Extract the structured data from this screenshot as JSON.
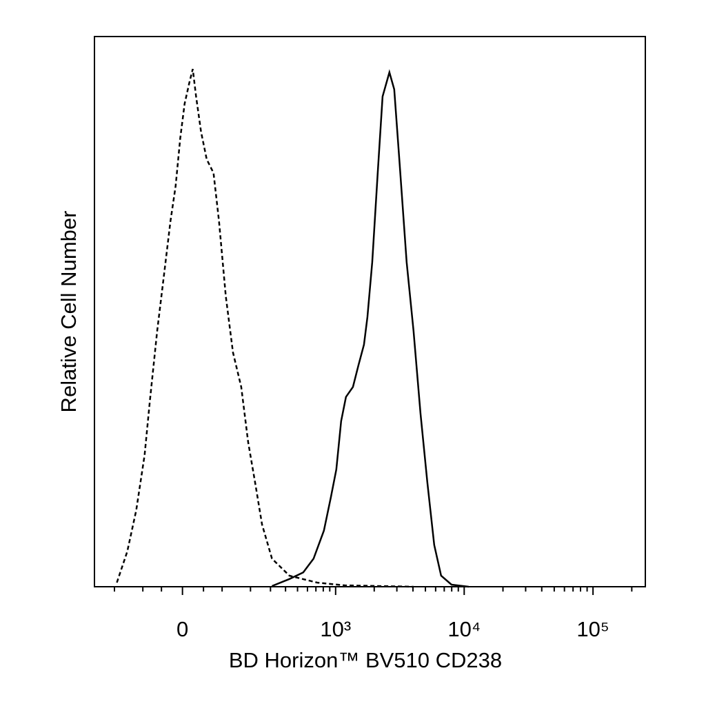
{
  "chart_data": {
    "type": "line",
    "x_label": "BD Horizon™ BV510 CD238",
    "y_label": "Relative Cell Number",
    "xscale": "arcsinh",
    "xlim": [
      -300,
      254800
    ],
    "ylim": [
      0,
      100
    ],
    "xticks": [
      {
        "value": 0,
        "label": "0"
      },
      {
        "value": 1000,
        "label": "10³"
      },
      {
        "value": 10000,
        "label": "10⁴"
      },
      {
        "value": 100000,
        "label": "10⁵"
      }
    ],
    "xminor_ticks": [
      -200,
      -100,
      -50,
      50,
      100,
      200,
      300,
      400,
      500,
      600,
      700,
      800,
      900,
      2000,
      3000,
      4000,
      5000,
      6000,
      7000,
      8000,
      9000,
      20000,
      30000,
      40000,
      50000,
      60000,
      70000,
      80000,
      90000,
      200000
    ],
    "series": [
      {
        "color": "#000000",
        "dash": "dashed",
        "x": [
          -190,
          -150,
          -120,
          -95,
          -80,
          -61,
          -44,
          -28,
          -16,
          -5,
          5,
          16,
          24,
          32,
          44,
          58,
          76,
          91,
          111,
          134,
          163,
          190,
          221,
          254,
          309,
          430,
          714,
          1177,
          4040
        ],
        "values": [
          0.75,
          6.4,
          13.9,
          23.9,
          33.8,
          46.4,
          56.5,
          66.5,
          72.8,
          81.6,
          87.8,
          91.6,
          94.1,
          89.1,
          82.7,
          77.7,
          75.2,
          66.5,
          52.8,
          42.6,
          36.3,
          26.3,
          18.8,
          11.3,
          5.1,
          2.0,
          0.75,
          0.25,
          0
        ]
      },
      {
        "color": "#000000",
        "dash": "solid",
        "x": [
          309,
          430,
          555,
          671,
          809,
          917,
          1013,
          1105,
          1205,
          1365,
          1506,
          1664,
          1771,
          1930,
          2130,
          2322,
          2626,
          2860,
          3159,
          3575,
          4043,
          4576,
          5174,
          5850,
          6617,
          7969,
          10842
        ],
        "values": [
          0.13,
          1.4,
          2.6,
          5.1,
          10.2,
          16.2,
          21.3,
          30.1,
          34.5,
          36.3,
          40.2,
          44.0,
          49.0,
          59.0,
          75.3,
          89.1,
          93.5,
          90.4,
          76.6,
          59.0,
          46.5,
          31.5,
          19.0,
          7.6,
          2.0,
          0.38,
          0
        ]
      }
    ]
  }
}
